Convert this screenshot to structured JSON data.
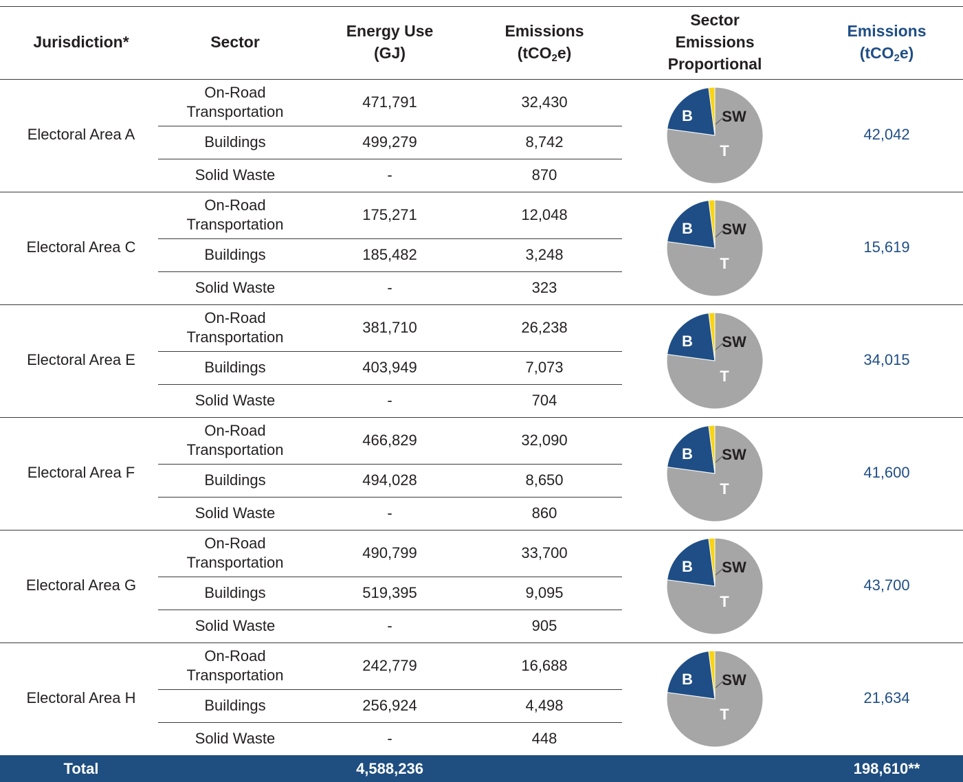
{
  "table": {
    "header": [
      [
        {
          "text": "Jurisdiction*"
        }
      ],
      [
        {
          "text": "Sector"
        }
      ],
      [
        {
          "text": "Energy Use"
        },
        {
          "text": "(GJ)"
        }
      ],
      [
        {
          "text": "Emissions"
        },
        {
          "text": "(tCO",
          "sub": "2",
          "tail": "e)"
        }
      ],
      [
        {
          "text": "Sector"
        },
        {
          "text": "Emissions"
        },
        {
          "text": "Proportional"
        }
      ],
      [
        {
          "text": "Emissions"
        },
        {
          "text": "(tCO",
          "sub": "2",
          "tail": "e)"
        }
      ]
    ],
    "pie_labels": [
      "T",
      "B",
      "SW"
    ],
    "rows": [
      {
        "jurisdiction": "Electoral Area A",
        "total": "42,042",
        "sectors": [
          {
            "name": [
              "On-Road",
              "Transportation"
            ],
            "energy": "471,791",
            "emissions": 32430,
            "emissions_label": "32,430"
          },
          {
            "name": [
              "Buildings"
            ],
            "energy": "499,279",
            "emissions": 8742,
            "emissions_label": "8,742"
          },
          {
            "name": [
              "Solid Waste"
            ],
            "energy": "-",
            "emissions": 870,
            "emissions_label": "870"
          }
        ]
      },
      {
        "jurisdiction": "Electoral Area C",
        "total": "15,619",
        "sectors": [
          {
            "name": [
              "On-Road",
              "Transportation"
            ],
            "energy": "175,271",
            "emissions": 12048,
            "emissions_label": "12,048"
          },
          {
            "name": [
              "Buildings"
            ],
            "energy": "185,482",
            "emissions": 3248,
            "emissions_label": "3,248"
          },
          {
            "name": [
              "Solid Waste"
            ],
            "energy": "-",
            "emissions": 323,
            "emissions_label": "323"
          }
        ]
      },
      {
        "jurisdiction": "Electoral Area E",
        "total": "34,015",
        "sectors": [
          {
            "name": [
              "On-Road",
              "Transportation"
            ],
            "energy": "381,710",
            "emissions": 26238,
            "emissions_label": "26,238"
          },
          {
            "name": [
              "Buildings"
            ],
            "energy": "403,949",
            "emissions": 7073,
            "emissions_label": "7,073"
          },
          {
            "name": [
              "Solid Waste"
            ],
            "energy": "-",
            "emissions": 704,
            "emissions_label": "704"
          }
        ]
      },
      {
        "jurisdiction": "Electoral Area F",
        "total": "41,600",
        "sectors": [
          {
            "name": [
              "On-Road",
              "Transportation"
            ],
            "energy": "466,829",
            "emissions": 32090,
            "emissions_label": "32,090"
          },
          {
            "name": [
              "Buildings"
            ],
            "energy": "494,028",
            "emissions": 8650,
            "emissions_label": "8,650"
          },
          {
            "name": [
              "Solid Waste"
            ],
            "energy": "-",
            "emissions": 860,
            "emissions_label": "860"
          }
        ]
      },
      {
        "jurisdiction": "Electoral Area G",
        "total": "43,700",
        "sectors": [
          {
            "name": [
              "On-Road",
              "Transportation"
            ],
            "energy": "490,799",
            "emissions": 33700,
            "emissions_label": "33,700"
          },
          {
            "name": [
              "Buildings"
            ],
            "energy": "519,395",
            "emissions": 9095,
            "emissions_label": "9,095"
          },
          {
            "name": [
              "Solid Waste"
            ],
            "energy": "-",
            "emissions": 905,
            "emissions_label": "905"
          }
        ]
      },
      {
        "jurisdiction": "Electoral Area H",
        "total": "21,634",
        "sectors": [
          {
            "name": [
              "On-Road",
              "Transportation"
            ],
            "energy": "242,779",
            "emissions": 16688,
            "emissions_label": "16,688"
          },
          {
            "name": [
              "Buildings"
            ],
            "energy": "256,924",
            "emissions": 4498,
            "emissions_label": "4,498"
          },
          {
            "name": [
              "Solid Waste"
            ],
            "energy": "-",
            "emissions": 448,
            "emissions_label": "448"
          }
        ]
      }
    ],
    "footer": {
      "label": "Total",
      "energy": "4,588,236",
      "emissions": "198,610**"
    }
  }
}
